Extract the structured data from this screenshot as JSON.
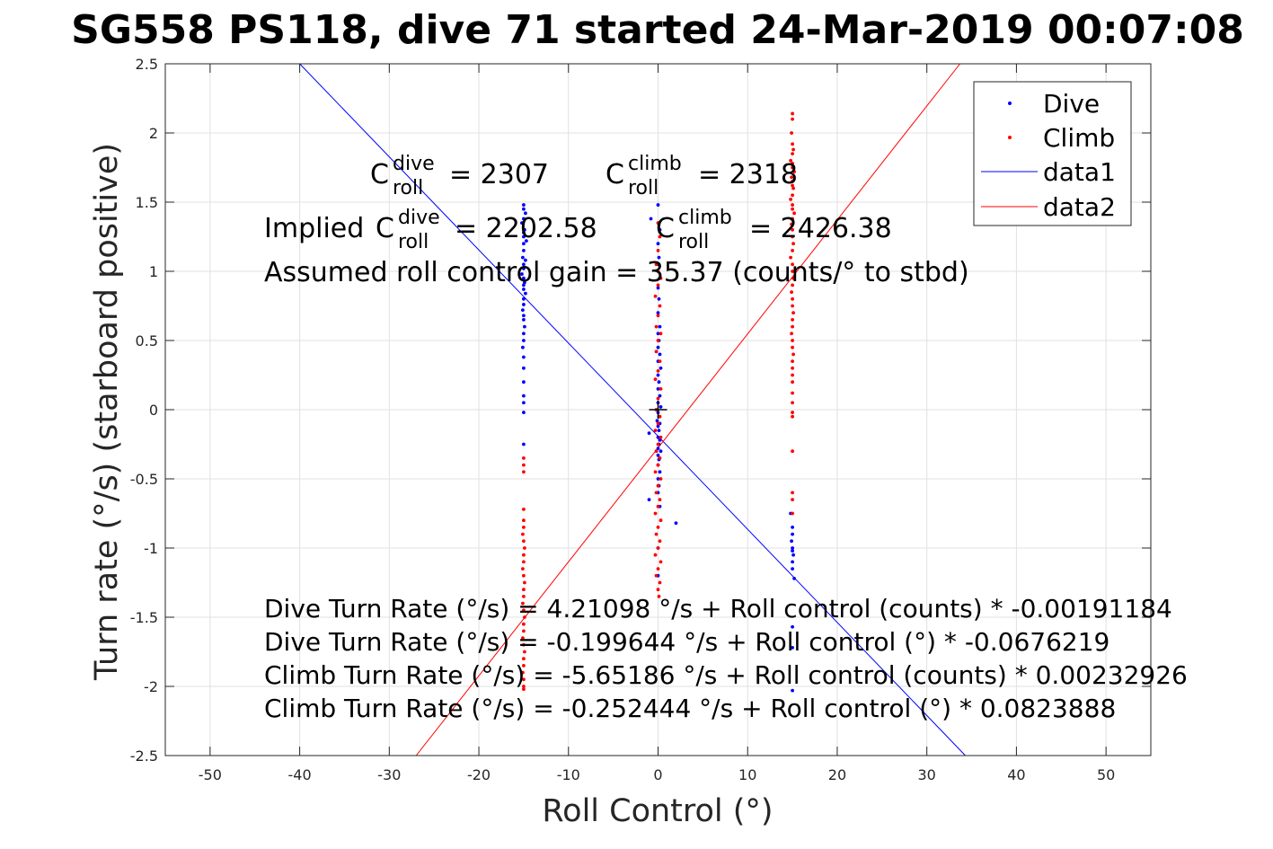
{
  "chart_data": {
    "type": "scatter",
    "title": "SG558 PS118, dive 71 started 24-Mar-2019 00:07:08",
    "xlabel": "Roll Control (°)",
    "ylabel": "Turn rate (°/s) (starboard positive)",
    "xlim": [
      -55,
      55
    ],
    "ylim": [
      -2.5,
      2.5
    ],
    "xticks": [
      -50,
      -40,
      -30,
      -20,
      -10,
      0,
      10,
      20,
      30,
      40,
      50
    ],
    "yticks": [
      -2.5,
      -2,
      -1.5,
      -1,
      -0.5,
      0,
      0.5,
      1,
      1.5,
      2,
      2.5
    ],
    "xtick_labels": [
      "-50",
      "-40",
      "-30",
      "-20",
      "-10",
      "0",
      "10",
      "20",
      "30",
      "40",
      "50"
    ],
    "ytick_labels": [
      "-2.5",
      "-2",
      "-1.5",
      "-1",
      "-0.5",
      "0",
      "0.5",
      "1",
      "1.5",
      "2",
      "2.5"
    ],
    "grid": true,
    "legend_position": "top-right",
    "center_marker": {
      "x": 0,
      "y": 0,
      "color": "#000000"
    },
    "series": [
      {
        "name": "Dive",
        "kind": "points",
        "color": "#0000ff",
        "points": [
          [
            -15,
            1.48
          ],
          [
            -15,
            1.45
          ],
          [
            -14.8,
            1.42
          ],
          [
            -15,
            1.38
          ],
          [
            -15.2,
            1.35
          ],
          [
            -14.9,
            1.3
          ],
          [
            -15,
            1.28
          ],
          [
            -15,
            1.25
          ],
          [
            -14.7,
            1.22
          ],
          [
            -15,
            1.2
          ],
          [
            -15,
            1.15
          ],
          [
            -15.1,
            1.1
          ],
          [
            -14.8,
            1.08
          ],
          [
            -15,
            1.05
          ],
          [
            -15,
            1.02
          ],
          [
            -15.2,
            0.98
          ],
          [
            -15,
            0.95
          ],
          [
            -14.9,
            0.92
          ],
          [
            -15,
            0.9
          ],
          [
            -15,
            0.87
          ],
          [
            -14.8,
            0.84
          ],
          [
            -15,
            0.8
          ],
          [
            -15,
            0.76
          ],
          [
            -15.1,
            0.72
          ],
          [
            -15,
            0.68
          ],
          [
            -15,
            0.65
          ],
          [
            -14.9,
            0.6
          ],
          [
            -15,
            0.55
          ],
          [
            -15,
            0.5
          ],
          [
            -15.1,
            0.45
          ],
          [
            -15,
            0.38
          ],
          [
            -15,
            0.3
          ],
          [
            -15,
            0.2
          ],
          [
            -15,
            0.1
          ],
          [
            -15,
            0.05
          ],
          [
            -15,
            -0.02
          ],
          [
            -15,
            -0.25
          ],
          [
            0,
            1.48
          ],
          [
            -0.8,
            1.38
          ],
          [
            0.2,
            1.3
          ],
          [
            0,
            1.2
          ],
          [
            0.1,
            1.1
          ],
          [
            0,
            1.05
          ],
          [
            0.2,
            0.95
          ],
          [
            0,
            0.88
          ],
          [
            0.1,
            0.8
          ],
          [
            0,
            0.7
          ],
          [
            0.2,
            0.6
          ],
          [
            0,
            0.55
          ],
          [
            0.1,
            0.5
          ],
          [
            0,
            0.45
          ],
          [
            0.2,
            0.4
          ],
          [
            0,
            0.35
          ],
          [
            0.3,
            0.3
          ],
          [
            0,
            0.25
          ],
          [
            0.1,
            0.2
          ],
          [
            0,
            0.15
          ],
          [
            0.2,
            0.1
          ],
          [
            0,
            0.05
          ],
          [
            0.3,
            0.02
          ],
          [
            0,
            -0.02
          ],
          [
            0.1,
            -0.05
          ],
          [
            -0.1,
            -0.08
          ],
          [
            0.2,
            -0.1
          ],
          [
            0,
            -0.12
          ],
          [
            0.1,
            -0.15
          ],
          [
            -1,
            -0.17
          ],
          [
            0,
            -0.2
          ],
          [
            0.2,
            -0.22
          ],
          [
            0.1,
            -0.25
          ],
          [
            0,
            -0.28
          ],
          [
            0.3,
            -0.3
          ],
          [
            0,
            -0.33
          ],
          [
            0.1,
            -0.36
          ],
          [
            0,
            -0.4
          ],
          [
            0.2,
            -0.45
          ],
          [
            0,
            -0.5
          ],
          [
            0.1,
            -0.55
          ],
          [
            0,
            -0.6
          ],
          [
            -1,
            -0.65
          ],
          [
            0.2,
            -0.7
          ],
          [
            2,
            -0.82
          ],
          [
            0,
            -1.0
          ],
          [
            0,
            -1.2
          ],
          [
            14.8,
            -0.75
          ],
          [
            15,
            -0.85
          ],
          [
            15,
            -0.9
          ],
          [
            14.9,
            -0.95
          ],
          [
            15,
            -1.0
          ],
          [
            15,
            -1.02
          ],
          [
            15.1,
            -1.05
          ],
          [
            15,
            -1.1
          ],
          [
            15,
            -1.15
          ],
          [
            15.2,
            -1.22
          ],
          [
            15,
            -1.57
          ],
          [
            15,
            -1.72
          ],
          [
            15,
            -2.03
          ]
        ]
      },
      {
        "name": "Climb",
        "kind": "points",
        "color": "#ff0000",
        "points": [
          [
            15,
            2.14
          ],
          [
            15,
            2.1
          ],
          [
            14.9,
            2.0
          ],
          [
            15,
            1.92
          ],
          [
            15.1,
            1.88
          ],
          [
            15,
            1.85
          ],
          [
            14.8,
            1.8
          ],
          [
            15,
            1.78
          ],
          [
            15,
            1.75
          ],
          [
            15.2,
            1.72
          ],
          [
            14.9,
            1.68
          ],
          [
            15,
            1.65
          ],
          [
            15,
            1.62
          ],
          [
            15.1,
            1.6
          ],
          [
            15,
            1.55
          ],
          [
            14.8,
            1.52
          ],
          [
            15,
            1.48
          ],
          [
            15,
            1.45
          ],
          [
            15.2,
            1.42
          ],
          [
            15,
            1.38
          ],
          [
            14.9,
            1.34
          ],
          [
            15,
            1.3
          ],
          [
            15,
            1.25
          ],
          [
            15.1,
            1.2
          ],
          [
            15,
            1.15
          ],
          [
            14.8,
            1.1
          ],
          [
            15,
            1.05
          ],
          [
            15,
            1.0
          ],
          [
            15.1,
            0.95
          ],
          [
            15,
            0.9
          ],
          [
            14.9,
            0.85
          ],
          [
            15,
            0.8
          ],
          [
            15,
            0.75
          ],
          [
            15.1,
            0.7
          ],
          [
            15,
            0.65
          ],
          [
            15,
            0.6
          ],
          [
            14.9,
            0.55
          ],
          [
            15,
            0.5
          ],
          [
            15,
            0.45
          ],
          [
            15.1,
            0.4
          ],
          [
            15,
            0.35
          ],
          [
            15,
            0.3
          ],
          [
            15,
            0.25
          ],
          [
            15,
            0.2
          ],
          [
            15,
            0.12
          ],
          [
            15,
            0.05
          ],
          [
            15,
            -0.02
          ],
          [
            15,
            -0.05
          ],
          [
            15,
            -0.3
          ],
          [
            15,
            -0.6
          ],
          [
            15,
            -0.65
          ],
          [
            15,
            -0.75
          ],
          [
            0,
            1.35
          ],
          [
            0.2,
            1.25
          ],
          [
            0,
            1.15
          ],
          [
            -0.2,
            1.05
          ],
          [
            0,
            1.0
          ],
          [
            0.3,
            0.95
          ],
          [
            0,
            0.9
          ],
          [
            -0.3,
            0.82
          ],
          [
            0.2,
            0.75
          ],
          [
            0,
            0.68
          ],
          [
            -0.2,
            0.6
          ],
          [
            0.3,
            0.55
          ],
          [
            0,
            0.5
          ],
          [
            -0.2,
            0.42
          ],
          [
            0.2,
            0.35
          ],
          [
            0,
            0.28
          ],
          [
            -0.3,
            0.22
          ],
          [
            0.3,
            0.15
          ],
          [
            0,
            0.08
          ],
          [
            -0.2,
            0.0
          ],
          [
            0.2,
            -0.05
          ],
          [
            0,
            -0.1
          ],
          [
            -0.3,
            -0.15
          ],
          [
            0.3,
            -0.2
          ],
          [
            0,
            -0.25
          ],
          [
            -0.2,
            -0.3
          ],
          [
            0.2,
            -0.35
          ],
          [
            0,
            -0.4
          ],
          [
            -0.3,
            -0.45
          ],
          [
            0.3,
            -0.5
          ],
          [
            0,
            -0.55
          ],
          [
            -0.2,
            -0.6
          ],
          [
            0.2,
            -0.65
          ],
          [
            0,
            -0.7
          ],
          [
            -0.3,
            -0.75
          ],
          [
            0.3,
            -0.8
          ],
          [
            0,
            -0.85
          ],
          [
            -0.2,
            -0.9
          ],
          [
            0.2,
            -0.95
          ],
          [
            0,
            -1.0
          ],
          [
            -0.3,
            -1.05
          ],
          [
            0.3,
            -1.1
          ],
          [
            0,
            -1.15
          ],
          [
            -0.2,
            -1.2
          ],
          [
            0.2,
            -1.25
          ],
          [
            0,
            -1.3
          ],
          [
            0.1,
            -1.35
          ],
          [
            -15,
            -0.35
          ],
          [
            -15,
            -0.4
          ],
          [
            -15,
            -0.45
          ],
          [
            -15,
            -0.72
          ],
          [
            -15,
            -0.8
          ],
          [
            -15,
            -0.85
          ],
          [
            -15.1,
            -0.9
          ],
          [
            -15,
            -0.95
          ],
          [
            -14.9,
            -1.0
          ],
          [
            -15,
            -1.05
          ],
          [
            -15,
            -1.1
          ],
          [
            -15.1,
            -1.15
          ],
          [
            -15,
            -1.2
          ],
          [
            -14.9,
            -1.25
          ],
          [
            -15,
            -1.3
          ],
          [
            -15,
            -1.35
          ],
          [
            -15.1,
            -1.4
          ],
          [
            -15,
            -1.45
          ],
          [
            -14.9,
            -1.5
          ],
          [
            -15,
            -1.55
          ],
          [
            -15,
            -1.6
          ],
          [
            -15.1,
            -1.65
          ],
          [
            -15,
            -1.7
          ],
          [
            -14.9,
            -1.75
          ],
          [
            -15,
            -1.8
          ],
          [
            -15,
            -1.85
          ],
          [
            -15.1,
            -1.9
          ],
          [
            -15,
            -1.95
          ],
          [
            -15,
            -2.0
          ],
          [
            -15,
            -2.02
          ]
        ]
      },
      {
        "name": "data1",
        "kind": "line",
        "color": "#0000ff",
        "x": [
          -40,
          34.3
        ],
        "y": [
          2.5,
          -2.5
        ]
      },
      {
        "name": "data2",
        "kind": "line",
        "color": "#ff0000",
        "x": [
          -27,
          33.7
        ],
        "y": [
          -2.5,
          2.5
        ]
      }
    ],
    "annotations": {
      "c_roll_dive": {
        "base": "C",
        "sup": "dive",
        "sub": "roll",
        "value": "= 2307"
      },
      "c_roll_climb": {
        "base": "C",
        "sup": "climb",
        "sub": "roll",
        "value": "= 2318"
      },
      "implied_prefix": "Implied",
      "implied_dive": {
        "base": "C",
        "sup": "dive",
        "sub": "roll",
        "value": "= 2202.58"
      },
      "implied_climb": {
        "base": "C",
        "sup": "climb",
        "sub": "roll",
        "value": "= 2426.38"
      },
      "gain_line": "Assumed roll control gain = 35.37 (counts/° to stbd)",
      "equations": [
        "Dive Turn Rate (°/s) = 4.21098 °/s + Roll control (counts) * -0.00191184",
        "Dive Turn Rate (°/s) = -0.199644 °/s + Roll control (°) * -0.0676219",
        "Climb Turn Rate (°/s) = -5.65186 °/s + Roll control (counts) * 0.00232926",
        "Climb Turn Rate (°/s) = -0.252444 °/s + Roll control (°) * 0.0823888"
      ]
    }
  }
}
